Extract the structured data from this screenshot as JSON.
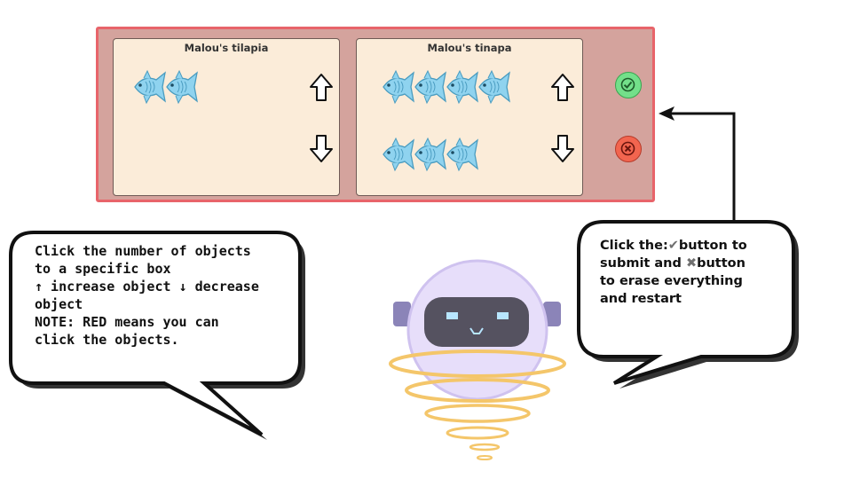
{
  "game": {
    "boxes": [
      {
        "title": "Malou's tilapia",
        "fish_count": 2
      },
      {
        "title": "Malou's tinapa",
        "fish_count": 7
      }
    ],
    "controls": {
      "up_arrow": "⇧",
      "down_arrow": "⇩",
      "submit_icon": "check-icon",
      "reset_icon": "cross-icon"
    }
  },
  "instructions": {
    "left_lines": [
      "Click the number of objects",
      "to a specific box",
      "↑  increase object ↓ decrease",
      "object",
      "NOTE: RED means you can",
      "click the objects."
    ],
    "right_line1_prefix": "Click the:",
    "right_check_glyph": "✔",
    "right_line1_suffix": "button to",
    "right_line2_prefix": "submit and ",
    "right_cross_glyph": "✖",
    "right_line2_suffix": "button",
    "right_line3": "to erase everything",
    "right_line4": "and restart"
  },
  "colors": {
    "panel": "#d4a39d",
    "panel_border": "#e8646a",
    "box": "#fbecd9",
    "fish": "#8fd3ef",
    "check": "#73e08a",
    "cross": "#f2654f"
  }
}
